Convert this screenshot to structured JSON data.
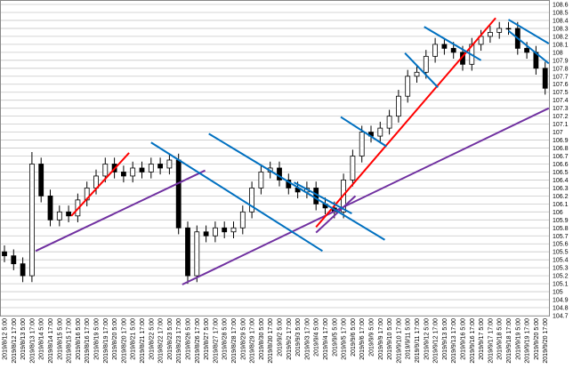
{
  "chart_data": {
    "type": "candlestick",
    "categories": [
      "2019/8/12 5:00",
      "2019/8/12 17:00",
      "2019/8/13 5:00",
      "2019/8/13 17:00",
      "2019/8/14 5:00",
      "2019/8/14 17:00",
      "2019/8/15 5:00",
      "2019/8/15 17:00",
      "2019/8/16 5:00",
      "2019/8/16 17:00",
      "2019/8/19 5:00",
      "2019/8/19 17:00",
      "2019/8/20 5:00",
      "2019/8/20 17:00",
      "2019/8/21 5:00",
      "2019/8/21 17:00",
      "2019/8/22 5:00",
      "2019/8/22 17:00",
      "2019/8/23 5:00",
      "2019/8/23 17:00",
      "2019/8/26 5:00",
      "2019/8/26 17:00",
      "2019/8/27 5:00",
      "2019/8/27 17:00",
      "2019/8/28 5:00",
      "2019/8/28 17:00",
      "2019/8/29 5:00",
      "2019/8/29 17:00",
      "2019/8/30 5:00",
      "2019/8/30 17:00",
      "2019/9/2 5:00",
      "2019/9/2 17:00",
      "2019/9/3 5:00",
      "2019/9/3 17:00",
      "2019/9/4 5:00",
      "2019/9/4 17:00",
      "2019/9/5 5:00",
      "2019/9/5 17:00",
      "2019/9/6 5:00",
      "2019/9/6 17:00",
      "2019/9/9 5:00",
      "2019/9/9 17:00",
      "2019/9/10 5:00",
      "2019/9/10 17:00",
      "2019/9/11 5:00",
      "2019/9/11 17:00",
      "2019/9/12 5:00",
      "2019/9/12 17:00",
      "2019/9/13 5:00",
      "2019/9/13 17:00",
      "2019/9/16 5:00",
      "2019/9/16 17:00",
      "2019/9/17 5:00",
      "2019/9/17 17:00",
      "2019/9/18 5:00",
      "2019/9/18 17:00",
      "2019/9/19 5:00",
      "2019/9/19 17:00",
      "2019/9/20 5:00",
      "2019/9/20 17:00"
    ],
    "open": [
      105.5,
      105.45,
      105.35,
      105.2,
      106.6,
      106.2,
      105.9,
      106.0,
      105.95,
      106.15,
      106.3,
      106.45,
      106.6,
      106.5,
      106.45,
      106.55,
      106.5,
      106.6,
      106.55,
      106.65,
      105.8,
      105.2,
      105.75,
      105.7,
      105.8,
      105.75,
      105.8,
      106.0,
      106.3,
      106.5,
      106.55,
      106.4,
      106.3,
      106.25,
      106.3,
      106.1,
      106.05,
      106.0,
      106.4,
      106.7,
      107.0,
      106.95,
      107.05,
      107.2,
      107.45,
      107.7,
      107.75,
      107.95,
      108.1,
      108.05,
      108.0,
      107.85,
      108.1,
      108.2,
      108.25,
      108.3,
      108.3,
      108.05,
      108.0,
      107.8
    ],
    "high": [
      105.58,
      105.53,
      105.43,
      106.75,
      106.68,
      106.28,
      106.08,
      106.08,
      106.23,
      106.38,
      106.53,
      106.68,
      106.68,
      106.58,
      106.63,
      106.63,
      106.68,
      106.68,
      106.73,
      106.73,
      105.88,
      105.83,
      105.83,
      105.88,
      105.88,
      105.88,
      106.08,
      106.38,
      106.58,
      106.63,
      106.63,
      106.48,
      106.38,
      106.38,
      106.38,
      106.18,
      106.13,
      106.48,
      106.78,
      107.08,
      107.08,
      107.13,
      107.28,
      107.53,
      107.78,
      107.83,
      108.03,
      108.18,
      108.18,
      108.13,
      108.08,
      108.18,
      108.28,
      108.33,
      108.38,
      108.38,
      108.38,
      108.13,
      108.08,
      107.88
    ],
    "low": [
      105.37,
      105.27,
      105.12,
      105.12,
      106.12,
      105.82,
      105.82,
      105.87,
      105.87,
      106.07,
      106.22,
      106.37,
      106.42,
      106.37,
      106.37,
      106.42,
      106.42,
      106.47,
      106.47,
      105.72,
      105.1,
      105.12,
      105.62,
      105.62,
      105.67,
      105.67,
      105.72,
      105.92,
      106.22,
      106.42,
      106.32,
      106.22,
      106.17,
      106.17,
      106.02,
      105.97,
      105.92,
      105.92,
      106.32,
      106.62,
      106.87,
      106.87,
      106.97,
      107.12,
      107.37,
      107.62,
      107.67,
      107.87,
      107.97,
      107.92,
      107.77,
      107.77,
      108.02,
      108.12,
      108.17,
      108.22,
      107.97,
      107.92,
      107.72,
      107.47
    ],
    "close": [
      105.45,
      105.35,
      105.2,
      106.6,
      106.2,
      105.9,
      106.0,
      105.95,
      106.15,
      106.3,
      106.45,
      106.6,
      106.5,
      106.45,
      106.55,
      106.5,
      106.6,
      106.55,
      106.65,
      105.8,
      105.2,
      105.75,
      105.7,
      105.8,
      105.75,
      105.8,
      106.0,
      106.3,
      106.5,
      106.55,
      106.4,
      106.3,
      106.25,
      106.3,
      106.1,
      106.05,
      106.0,
      106.4,
      106.7,
      107.0,
      106.95,
      107.05,
      107.2,
      107.45,
      107.7,
      107.75,
      107.95,
      108.1,
      108.05,
      108.0,
      107.85,
      108.1,
      108.2,
      108.25,
      108.3,
      108.3,
      108.05,
      108.0,
      107.8,
      107.55
    ],
    "up_color": "#ffffff",
    "down_color": "#000000",
    "ylim": [
      104.7,
      108.6
    ],
    "yticks": [
      104.7,
      104.8,
      104.9,
      105,
      105.1,
      105.2,
      105.3,
      105.4,
      105.5,
      105.6,
      105.7,
      105.8,
      105.9,
      106,
      106.1,
      106.2,
      106.3,
      106.4,
      106.5,
      106.6,
      106.7,
      106.8,
      106.9,
      107,
      107.1,
      107.2,
      107.3,
      107.4,
      107.5,
      107.6,
      107.7,
      107.8,
      107.9,
      108,
      108.1,
      108.2,
      108.3,
      108.4,
      108.5,
      108.6
    ],
    "grid": true,
    "trendlines": [
      {
        "color": "#7030a0",
        "x": [
          3.4,
          21.9
        ],
        "y": [
          105.51,
          106.52
        ]
      },
      {
        "color": "#7030a0",
        "x": [
          19.4,
          59.4
        ],
        "y": [
          105.09,
          107.3
        ]
      },
      {
        "color": "#7030a0",
        "x": [
          34.0,
          38.3
        ],
        "y": [
          105.74,
          106.2
        ]
      },
      {
        "color": "#ff0000",
        "x": [
          7.3,
          13.6
        ],
        "y": [
          105.95,
          106.74
        ]
      },
      {
        "color": "#ff0000",
        "x": [
          34.0,
          53.6
        ],
        "y": [
          105.81,
          108.43
        ]
      },
      {
        "color": "#0070c0",
        "x": [
          16.0,
          34.7
        ],
        "y": [
          106.87,
          105.51
        ]
      },
      {
        "color": "#0070c0",
        "x": [
          22.3,
          41.5
        ],
        "y": [
          106.98,
          105.65
        ]
      },
      {
        "color": "#0070c0",
        "x": [
          31.6,
          37.9
        ],
        "y": [
          106.37,
          105.98
        ]
      },
      {
        "color": "#0070c0",
        "x": [
          36.7,
          41.7
        ],
        "y": [
          107.19,
          106.82
        ]
      },
      {
        "color": "#0070c0",
        "x": [
          43.7,
          47.3
        ],
        "y": [
          107.99,
          107.56
        ]
      },
      {
        "color": "#0070c0",
        "x": [
          45.8,
          52.0
        ],
        "y": [
          108.32,
          107.9
        ]
      },
      {
        "color": "#0070c0",
        "x": [
          55.0,
          59.4
        ],
        "y": [
          108.41,
          108.11
        ]
      },
      {
        "color": "#0070c0",
        "x": [
          55.0,
          59.4
        ],
        "y": [
          108.27,
          107.86
        ]
      }
    ]
  }
}
